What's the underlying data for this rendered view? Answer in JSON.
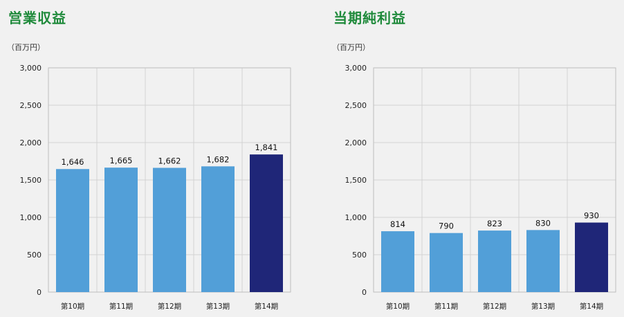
{
  "page": {
    "colors": {
      "bar": "#529fd8",
      "highlight": "#1f2678",
      "title": "#1f8a3b",
      "grid": "#d3d3d3",
      "plot_bg": "#f1f1f1"
    }
  },
  "chart_data": [
    {
      "type": "bar",
      "title": "営業収益",
      "unit": "（百万円）",
      "categories": [
        "第10期",
        "第11期",
        "第12期",
        "第13期",
        "第14期"
      ],
      "values": [
        1646,
        1665,
        1662,
        1682,
        1841
      ],
      "value_labels": [
        "1,646",
        "1,665",
        "1,662",
        "1,682",
        "1,841"
      ],
      "highlight_index": 4,
      "ylim": [
        0,
        3000
      ],
      "yticks": [
        0,
        500,
        1000,
        1500,
        2000,
        2500,
        3000
      ],
      "ytick_labels": [
        "0",
        "500",
        "1,000",
        "1,500",
        "2,000",
        "2,500",
        "3,000"
      ],
      "grid": true
    },
    {
      "type": "bar",
      "title": "当期純利益",
      "unit": "（百万円）",
      "categories": [
        "第10期",
        "第11期",
        "第12期",
        "第13期",
        "第14期"
      ],
      "values": [
        814,
        790,
        823,
        830,
        930
      ],
      "value_labels": [
        "814",
        "790",
        "823",
        "830",
        "930"
      ],
      "highlight_index": 4,
      "ylim": [
        0,
        3000
      ],
      "yticks": [
        0,
        500,
        1000,
        1500,
        2000,
        2500,
        3000
      ],
      "ytick_labels": [
        "0",
        "500",
        "1,000",
        "1,500",
        "2,000",
        "2,500",
        "3,000"
      ],
      "grid": true
    }
  ]
}
